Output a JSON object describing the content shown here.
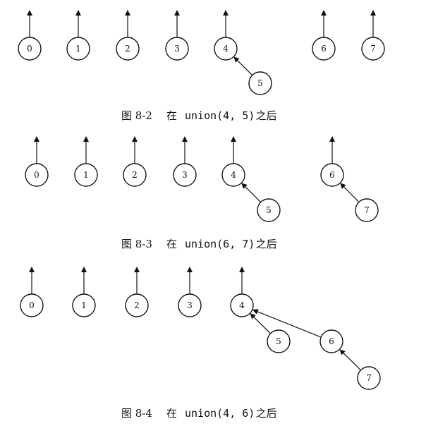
{
  "figures": [
    {
      "id": "fig-8-2",
      "caption": {
        "label": "图 8-2",
        "prefix": "在",
        "code": "union(4, 5)",
        "suffix": "之后"
      },
      "nodes": [
        "0",
        "1",
        "2",
        "3",
        "4",
        "5",
        "6",
        "7"
      ],
      "roots": [
        "0",
        "1",
        "2",
        "3",
        "4",
        "6",
        "7"
      ],
      "edges": [
        {
          "child": "5",
          "parent": "4"
        }
      ]
    },
    {
      "id": "fig-8-3",
      "caption": {
        "label": "图 8-3",
        "prefix": "在",
        "code": "union(6, 7)",
        "suffix": "之后"
      },
      "nodes": [
        "0",
        "1",
        "2",
        "3",
        "4",
        "5",
        "6",
        "7"
      ],
      "roots": [
        "0",
        "1",
        "2",
        "3",
        "4",
        "6"
      ],
      "edges": [
        {
          "child": "5",
          "parent": "4"
        },
        {
          "child": "7",
          "parent": "6"
        }
      ]
    },
    {
      "id": "fig-8-4",
      "caption": {
        "label": "图 8-4",
        "prefix": "在",
        "code": "union(4, 6)",
        "suffix": "之后"
      },
      "nodes": [
        "0",
        "1",
        "2",
        "3",
        "4",
        "5",
        "6",
        "7"
      ],
      "roots": [
        "0",
        "1",
        "2",
        "3",
        "4"
      ],
      "edges": [
        {
          "child": "5",
          "parent": "4"
        },
        {
          "child": "6",
          "parent": "4"
        },
        {
          "child": "7",
          "parent": "6"
        }
      ]
    }
  ]
}
